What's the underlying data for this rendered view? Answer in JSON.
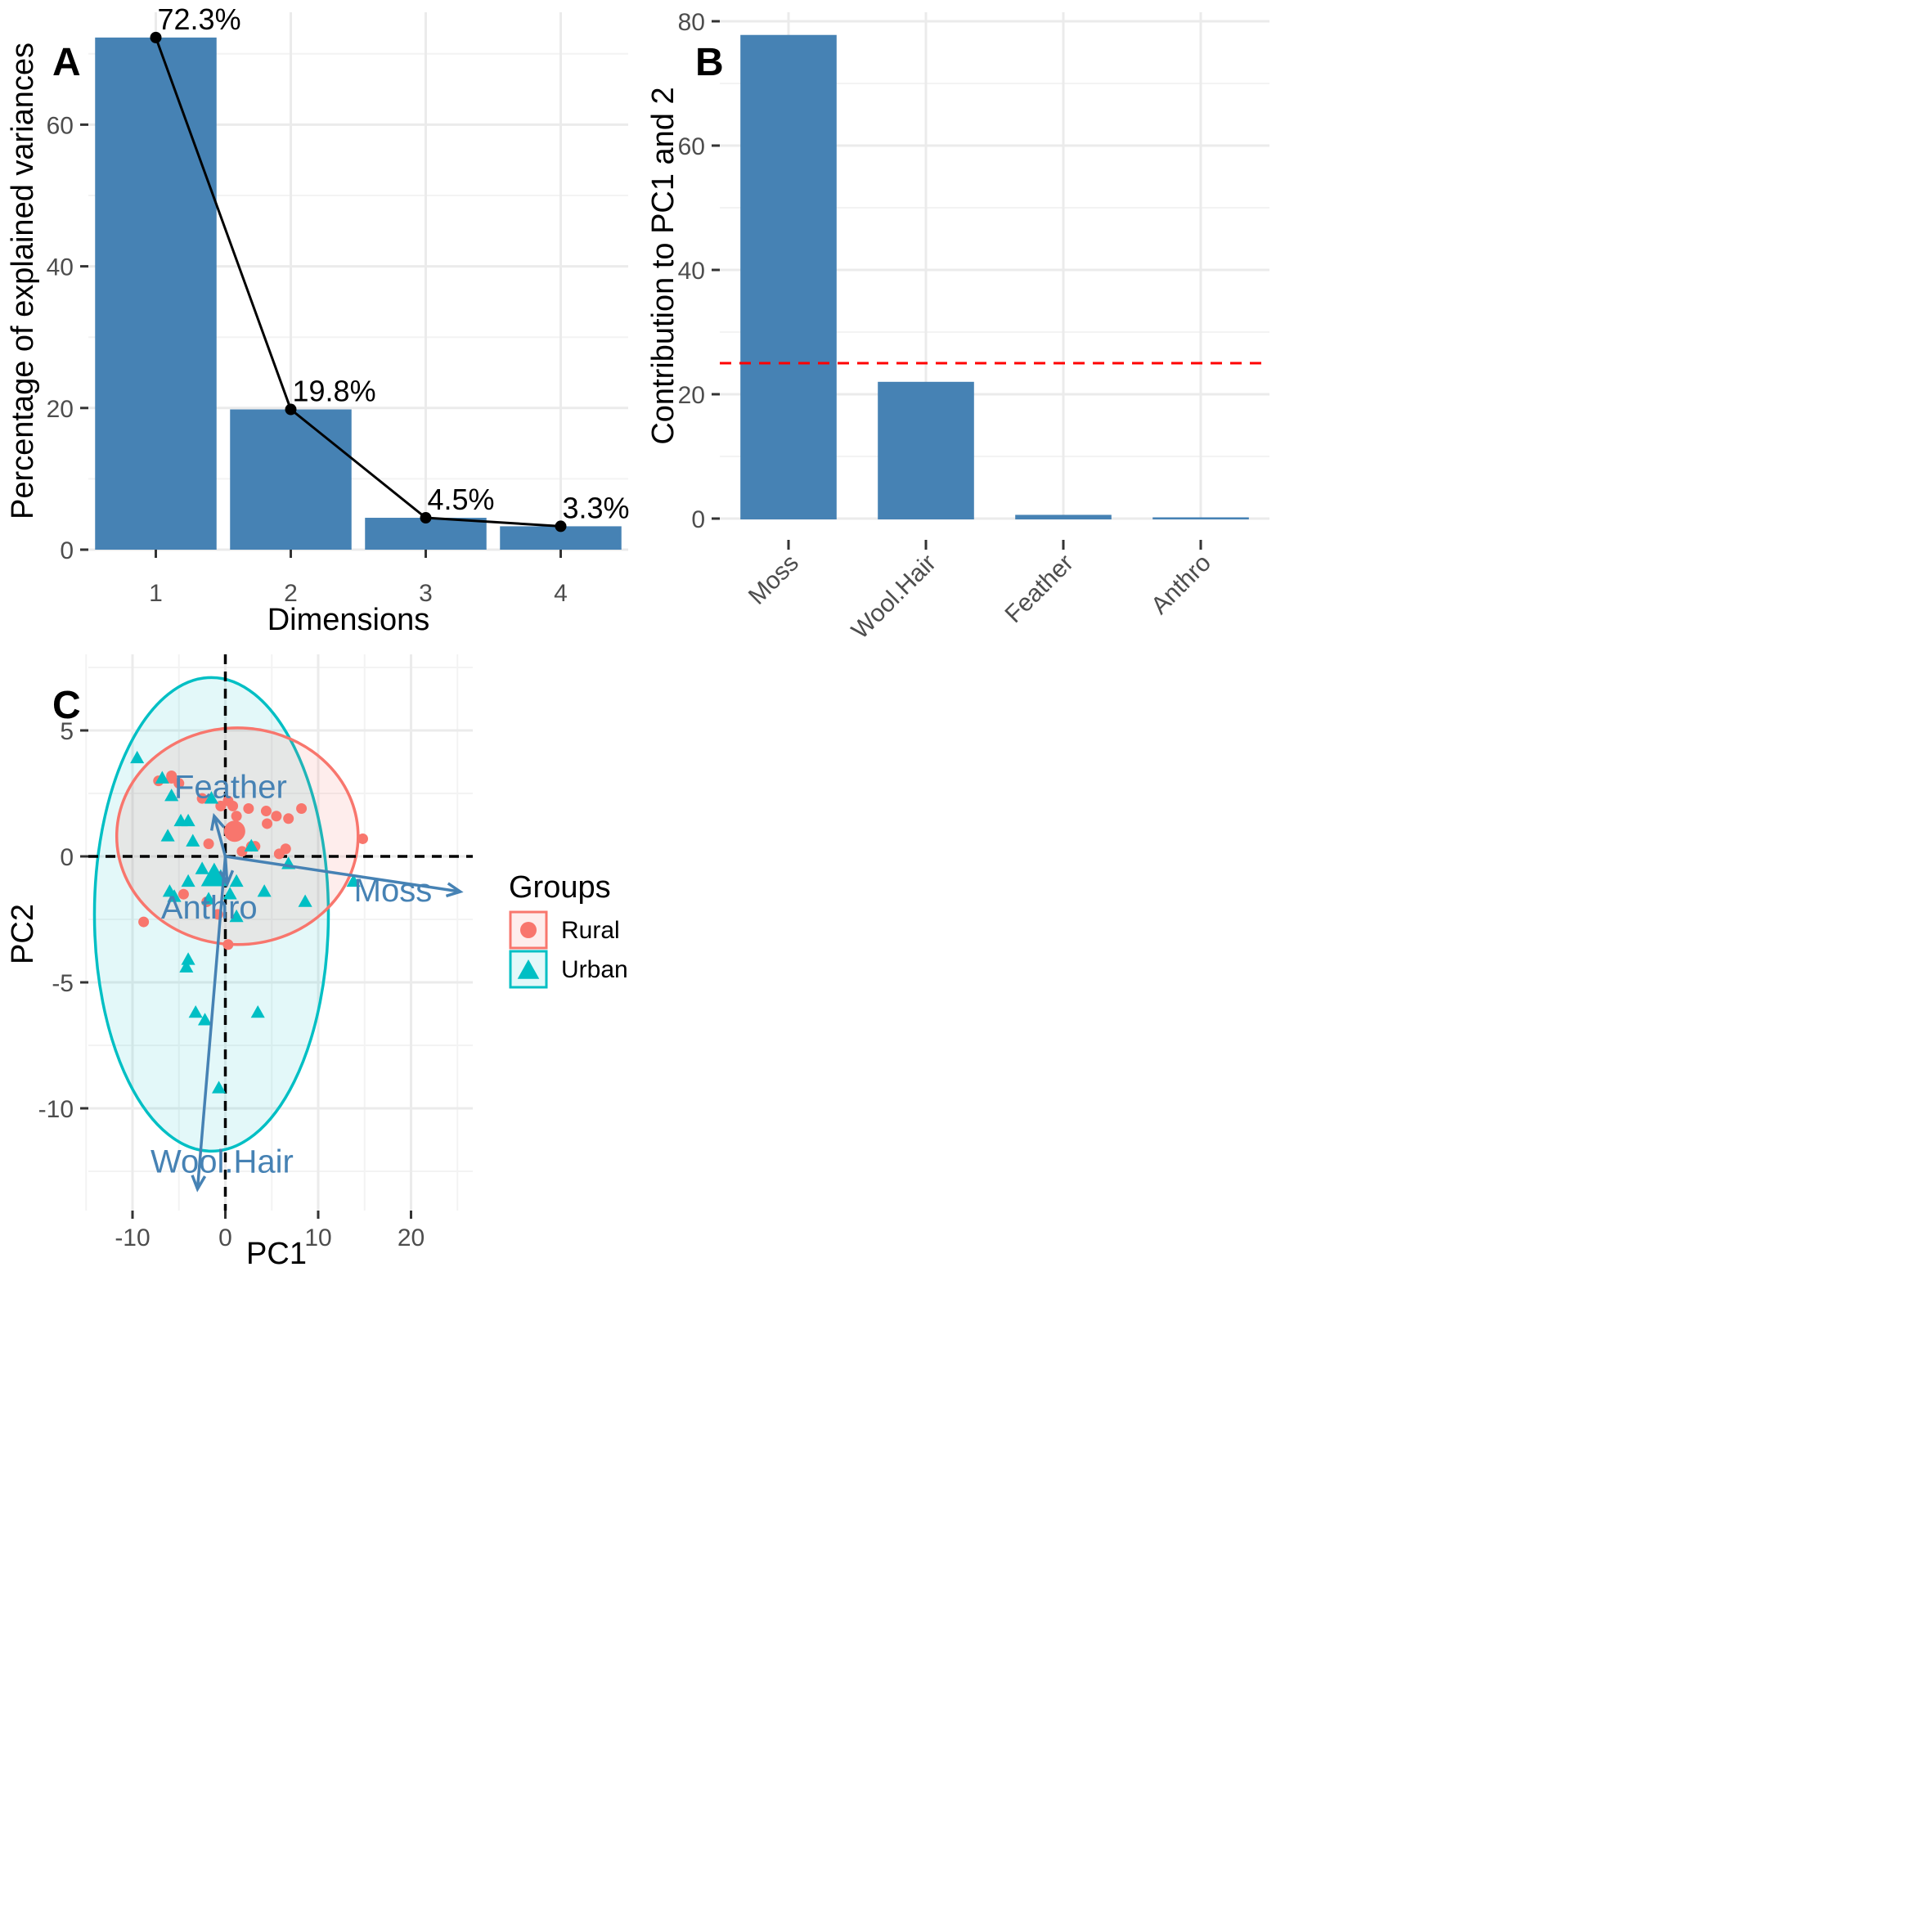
{
  "chart_data": [
    {
      "panel": "A",
      "type": "bar",
      "panel_label": "A",
      "xlabel": "Dimensions",
      "ylabel": "Percentage of explained variances",
      "categories": [
        "1",
        "2",
        "3",
        "4"
      ],
      "values": [
        72.3,
        19.8,
        4.5,
        3.3
      ],
      "data_labels": [
        "72.3%",
        "19.8%",
        "4.5%",
        "3.3%"
      ],
      "overlay": "line with points",
      "ylim": [
        0,
        75
      ],
      "yticks": [
        0,
        20,
        40,
        60
      ],
      "grid": true,
      "bar_color": "#4682B4"
    },
    {
      "panel": "B",
      "type": "bar",
      "panel_label": "B",
      "ylabel": "Contribution to PC1 and 2",
      "categories": [
        "Moss",
        "Wool.Hair",
        "Feather",
        "Anthro"
      ],
      "values": [
        77.8,
        22.0,
        0.6,
        0.2
      ],
      "reference_line": {
        "y": 25,
        "style": "dashed",
        "color": "#FF0000"
      },
      "ylim": [
        0,
        80
      ],
      "yticks": [
        0,
        20,
        40,
        60,
        80
      ],
      "grid": true,
      "bar_color": "#4682B4"
    },
    {
      "panel": "C",
      "type": "scatter",
      "panel_label": "C",
      "xlabel": "PC1",
      "ylabel": "PC2",
      "xlim": [
        -15,
        27
      ],
      "ylim": [
        -13.5,
        7.5
      ],
      "xticks": [
        -10,
        0,
        10,
        20
      ],
      "yticks": [
        -10,
        -5,
        0,
        5
      ],
      "grid": true,
      "legend": {
        "title": "Groups",
        "position": "right",
        "entries": [
          {
            "name": "Rural",
            "shape": "circle",
            "color": "#F8766D"
          },
          {
            "name": "Urban",
            "shape": "triangle",
            "color": "#00BFC4"
          }
        ]
      },
      "series": [
        {
          "name": "Rural",
          "shape": "circle",
          "color": "#F8766D",
          "x": [
            -7.2,
            -5.8,
            -5.8,
            -5.0,
            -2.5,
            -1.8,
            -0.5,
            0.3,
            0.8,
            0.5,
            1.2,
            2.5,
            3.2,
            4.4,
            5.5,
            6.8,
            8.2,
            4.5,
            2.8,
            1.8,
            6.5,
            5.8,
            -4.5,
            -2.0,
            -8.8,
            -0.8,
            0.3,
            14.8
          ],
          "y": [
            3.0,
            3.1,
            3.2,
            2.9,
            2.3,
            0.5,
            2.0,
            2.2,
            2.0,
            1.0,
            1.6,
            1.9,
            0.4,
            1.8,
            1.6,
            1.5,
            1.9,
            1.3,
            0.4,
            0.2,
            0.3,
            0.1,
            -1.5,
            -1.8,
            -2.6,
            -2.3,
            -3.5,
            0.7
          ]
        },
        {
          "name": "Urban",
          "shape": "triangle",
          "color": "#00BFC4",
          "x": [
            -9.5,
            -6.8,
            -5.8,
            -6.2,
            -4.8,
            -4.0,
            -3.5,
            -6.0,
            -5.5,
            -4.0,
            -2.5,
            -1.8,
            -0.5,
            0.5,
            1.2,
            2.8,
            1.2,
            4.2,
            6.8,
            8.6,
            13.8,
            -4.0,
            -4.2,
            -3.2,
            -2.2,
            3.5,
            -0.7,
            -1.5
          ],
          "y": [
            3.9,
            3.1,
            2.4,
            0.8,
            1.4,
            1.4,
            0.6,
            -1.4,
            -1.6,
            -1.0,
            -0.5,
            -1.7,
            -0.8,
            -1.5,
            -2.4,
            0.4,
            -1.0,
            -1.4,
            -0.3,
            -1.8,
            -1.0,
            -4.1,
            -4.4,
            -6.2,
            -6.5,
            -6.2,
            -9.2,
            2.3
          ]
        }
      ],
      "group_centroids": [
        {
          "name": "Rural",
          "x": 1.0,
          "y": 1.0
        },
        {
          "name": "Urban",
          "x": -1.2,
          "y": -0.8
        }
      ],
      "ellipses": [
        {
          "group": "Rural",
          "center": [
            1.3,
            0.8
          ],
          "semi_axes": [
            13.0,
            4.3
          ],
          "color": "#F8766D"
        },
        {
          "group": "Urban",
          "center": [
            -1.5,
            -2.3
          ],
          "semi_axes": [
            12.6,
            9.4
          ],
          "color": "#00BFC4"
        }
      ],
      "variable_arrows": [
        {
          "name": "Moss",
          "x": 25.3,
          "y": -1.4
        },
        {
          "name": "Wool.Hair",
          "x": -3.0,
          "y": -13.2
        },
        {
          "name": "Feather",
          "x": -1.2,
          "y": 1.6
        },
        {
          "name": "Anthro",
          "x": 0.2,
          "y": -1.1
        }
      ],
      "reference_lines": [
        {
          "axis": "x",
          "value": 0
        },
        {
          "axis": "y",
          "value": 0
        }
      ],
      "arrow_color": "#4682B4"
    }
  ]
}
